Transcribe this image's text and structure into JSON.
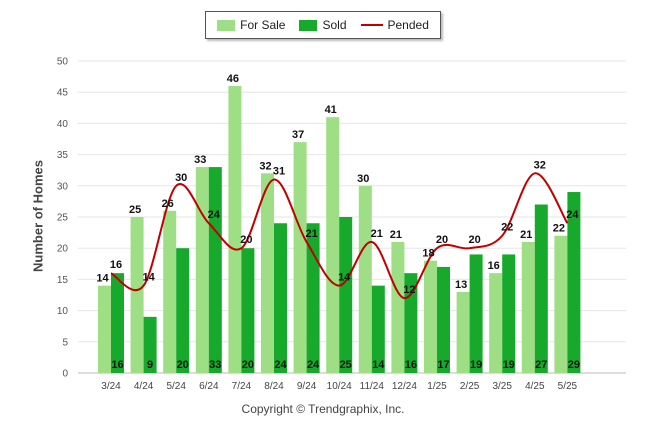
{
  "chart_data": {
    "type": "bar",
    "categories": [
      "3/24",
      "4/24",
      "5/24",
      "6/24",
      "7/24",
      "8/24",
      "9/24",
      "10/24",
      "11/24",
      "12/24",
      "1/25",
      "2/25",
      "3/25",
      "4/25",
      "5/25"
    ],
    "series": [
      {
        "name": "For Sale",
        "type": "bar",
        "color": "#9ede84",
        "values": [
          14,
          25,
          26,
          33,
          46,
          32,
          37,
          41,
          30,
          21,
          18,
          13,
          16,
          21,
          22
        ]
      },
      {
        "name": "Sold",
        "type": "bar",
        "color": "#17a92c",
        "values": [
          16,
          9,
          20,
          33,
          20,
          24,
          24,
          25,
          14,
          16,
          17,
          19,
          19,
          27,
          29
        ]
      },
      {
        "name": "Pended",
        "type": "line",
        "color": "#c00000",
        "values": [
          16,
          14,
          30,
          24,
          20,
          31,
          21,
          14,
          21,
          12,
          20,
          20,
          22,
          32,
          24
        ]
      }
    ],
    "xlabel": "",
    "ylabel": "Number of Homes",
    "ylim": [
      0,
      50
    ],
    "yticks": [
      0,
      5,
      10,
      15,
      20,
      25,
      30,
      35,
      40,
      45,
      50
    ],
    "grid": true,
    "legend_position": "top-center"
  },
  "footer": "Copyright © Trendgraphix, Inc."
}
